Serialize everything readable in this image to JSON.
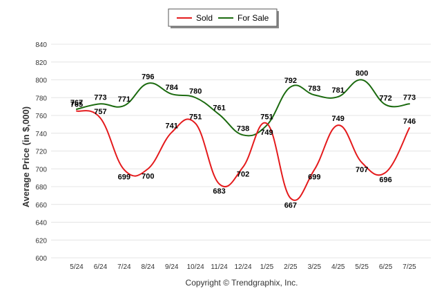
{
  "chart_data": {
    "type": "line",
    "ylabel": "Average Price (in $,000)",
    "ylim": [
      600,
      840
    ],
    "yticks": [
      600,
      620,
      640,
      660,
      680,
      700,
      720,
      740,
      760,
      780,
      800,
      820,
      840
    ],
    "grid": true,
    "legend_position": "top-center",
    "categories": [
      "5/24",
      "6/24",
      "7/24",
      "8/24",
      "9/24",
      "10/24",
      "11/24",
      "12/24",
      "1/25",
      "2/25",
      "3/25",
      "4/25",
      "5/25",
      "6/25",
      "7/25"
    ],
    "series": [
      {
        "name": "Sold",
        "color": "#e41a1c",
        "values": [
          765,
          757,
          699,
          700,
          741,
          751,
          683,
          702,
          751,
          667,
          699,
          749,
          707,
          696,
          746
        ]
      },
      {
        "name": "For Sale",
        "color": "#1b6a0f",
        "values": [
          767,
          773,
          771,
          796,
          784,
          780,
          761,
          738,
          749,
          792,
          783,
          781,
          800,
          772,
          773
        ]
      }
    ]
  },
  "footer": {
    "copyright": "Copyright © Trendgraphix, Inc."
  }
}
